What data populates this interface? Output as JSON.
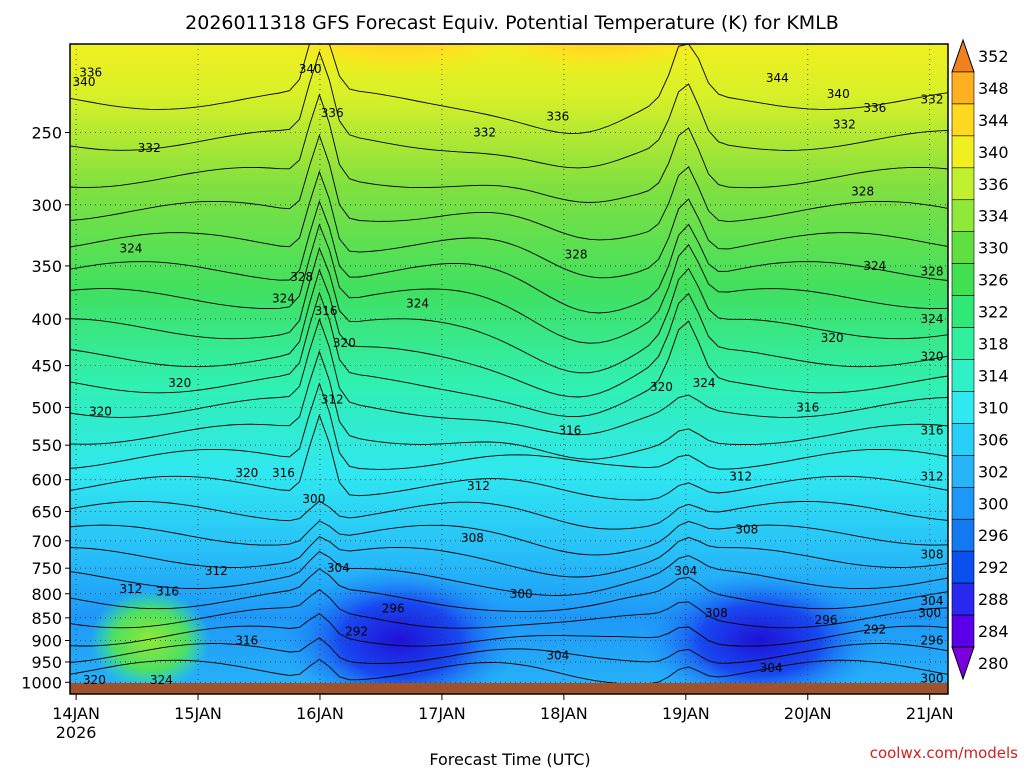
{
  "chart_data": {
    "type": "heatmap",
    "title": "2026011318 GFS Forecast Equiv. Potential Temperature (K) for KMLB",
    "xlabel": "Forecast Time (UTC)",
    "ylabel": "",
    "credit": "coolwx.com/models",
    "x_ticks": [
      {
        "label": "14JAN",
        "sub": "2026",
        "day": 0.0
      },
      {
        "label": "15JAN",
        "sub": "",
        "day": 1.0
      },
      {
        "label": "16JAN",
        "sub": "",
        "day": 2.0
      },
      {
        "label": "17JAN",
        "sub": "",
        "day": 3.0
      },
      {
        "label": "18JAN",
        "sub": "",
        "day": 4.0
      },
      {
        "label": "19JAN",
        "sub": "",
        "day": 5.0
      },
      {
        "label": "20JAN",
        "sub": "",
        "day": 6.0
      },
      {
        "label": "21JAN",
        "sub": "",
        "day": 7.0
      }
    ],
    "xlim": [
      -0.05,
      7.15
    ],
    "y_ticks": [
      250,
      300,
      350,
      400,
      450,
      500,
      550,
      600,
      650,
      700,
      750,
      800,
      850,
      900,
      950,
      1000
    ],
    "ylim": [
      200,
      1030
    ],
    "yscale": "log-pressure",
    "colorbar_levels": [
      280,
      284,
      288,
      292,
      296,
      300,
      302,
      306,
      310,
      314,
      318,
      322,
      326,
      330,
      334,
      336,
      340,
      344,
      348,
      352
    ],
    "colorbar_colors": [
      "#7b00e0",
      "#5a00e8",
      "#2828f0",
      "#0a50f0",
      "#1478f0",
      "#1e98f8",
      "#28b4f8",
      "#28d0f8",
      "#30e8f0",
      "#30f0c8",
      "#30f0a0",
      "#30e878",
      "#40e050",
      "#60e040",
      "#90e838",
      "#c0f030",
      "#f0f020",
      "#ffd820",
      "#ffb020",
      "#f08020"
    ],
    "terrain_color": "#a0522d",
    "contour_labels": [
      {
        "text": "340",
        "day": -0.05,
        "p": 220
      },
      {
        "text": "336",
        "day": 0.12,
        "p": 215
      },
      {
        "text": "332",
        "day": 0.6,
        "p": 260
      },
      {
        "text": "324",
        "day": 0.45,
        "p": 335
      },
      {
        "text": "320",
        "day": 0.85,
        "p": 470
      },
      {
        "text": "320",
        "day": 0.2,
        "p": 505
      },
      {
        "text": "340",
        "day": 1.92,
        "p": 213
      },
      {
        "text": "336",
        "day": 2.1,
        "p": 238
      },
      {
        "text": "332",
        "day": 3.35,
        "p": 250
      },
      {
        "text": "336",
        "day": 3.95,
        "p": 240
      },
      {
        "text": "344",
        "day": 5.75,
        "p": 218
      },
      {
        "text": "340",
        "day": 6.25,
        "p": 227
      },
      {
        "text": "336",
        "day": 6.55,
        "p": 235
      },
      {
        "text": "332",
        "day": 6.3,
        "p": 245
      },
      {
        "text": "332",
        "day": 7.6,
        "p": 230
      },
      {
        "text": "328",
        "day": 6.45,
        "p": 290
      },
      {
        "text": "328",
        "day": 4.1,
        "p": 340
      },
      {
        "text": "328",
        "day": 1.85,
        "p": 360
      },
      {
        "text": "324",
        "day": 1.7,
        "p": 380
      },
      {
        "text": "316",
        "day": 2.05,
        "p": 392
      },
      {
        "text": "320",
        "day": 2.2,
        "p": 425
      },
      {
        "text": "324",
        "day": 2.8,
        "p": 385
      },
      {
        "text": "324",
        "day": 6.55,
        "p": 350
      },
      {
        "text": "328",
        "day": 7.55,
        "p": 355
      },
      {
        "text": "324",
        "day": 7.45,
        "p": 400
      },
      {
        "text": "320",
        "day": 6.2,
        "p": 420
      },
      {
        "text": "320",
        "day": 7.4,
        "p": 440
      },
      {
        "text": "320",
        "day": 4.8,
        "p": 475
      },
      {
        "text": "324",
        "day": 5.15,
        "p": 470
      },
      {
        "text": "312",
        "day": 2.1,
        "p": 490
      },
      {
        "text": "316",
        "day": 4.05,
        "p": 530
      },
      {
        "text": "316",
        "day": 6.0,
        "p": 500
      },
      {
        "text": "316",
        "day": 7.25,
        "p": 530
      },
      {
        "text": "320",
        "day": 1.4,
        "p": 590
      },
      {
        "text": "316",
        "day": 1.7,
        "p": 590
      },
      {
        "text": "312",
        "day": 3.3,
        "p": 610
      },
      {
        "text": "312",
        "day": 5.45,
        "p": 595
      },
      {
        "text": "312",
        "day": 7.25,
        "p": 595
      },
      {
        "text": "300",
        "day": 1.95,
        "p": 630
      },
      {
        "text": "308",
        "day": 3.25,
        "p": 695
      },
      {
        "text": "308",
        "day": 5.5,
        "p": 680
      },
      {
        "text": "308",
        "day": 7.25,
        "p": 725
      },
      {
        "text": "304",
        "day": 2.15,
        "p": 750
      },
      {
        "text": "304",
        "day": 5.0,
        "p": 755
      },
      {
        "text": "300",
        "day": 3.65,
        "p": 800
      },
      {
        "text": "296",
        "day": 2.6,
        "p": 830
      },
      {
        "text": "308",
        "day": 5.25,
        "p": 840
      },
      {
        "text": "304",
        "day": 7.25,
        "p": 815
      },
      {
        "text": "300",
        "day": 7.0,
        "p": 840
      },
      {
        "text": "296",
        "day": 6.15,
        "p": 855
      },
      {
        "text": "292",
        "day": 6.55,
        "p": 875
      },
      {
        "text": "292",
        "day": 2.3,
        "p": 880
      },
      {
        "text": "296",
        "day": 7.45,
        "p": 900
      },
      {
        "text": "304",
        "day": 3.95,
        "p": 935
      },
      {
        "text": "304",
        "day": 5.7,
        "p": 965
      },
      {
        "text": "300",
        "day": 7.55,
        "p": 990
      },
      {
        "text": "312",
        "day": 0.45,
        "p": 790
      },
      {
        "text": "316",
        "day": 0.75,
        "p": 795
      },
      {
        "text": "312",
        "day": 1.15,
        "p": 755
      },
      {
        "text": "316",
        "day": 1.4,
        "p": 900
      },
      {
        "text": "320",
        "day": 0.15,
        "p": 1000
      },
      {
        "text": "324",
        "day": 0.7,
        "p": 1025
      }
    ]
  }
}
